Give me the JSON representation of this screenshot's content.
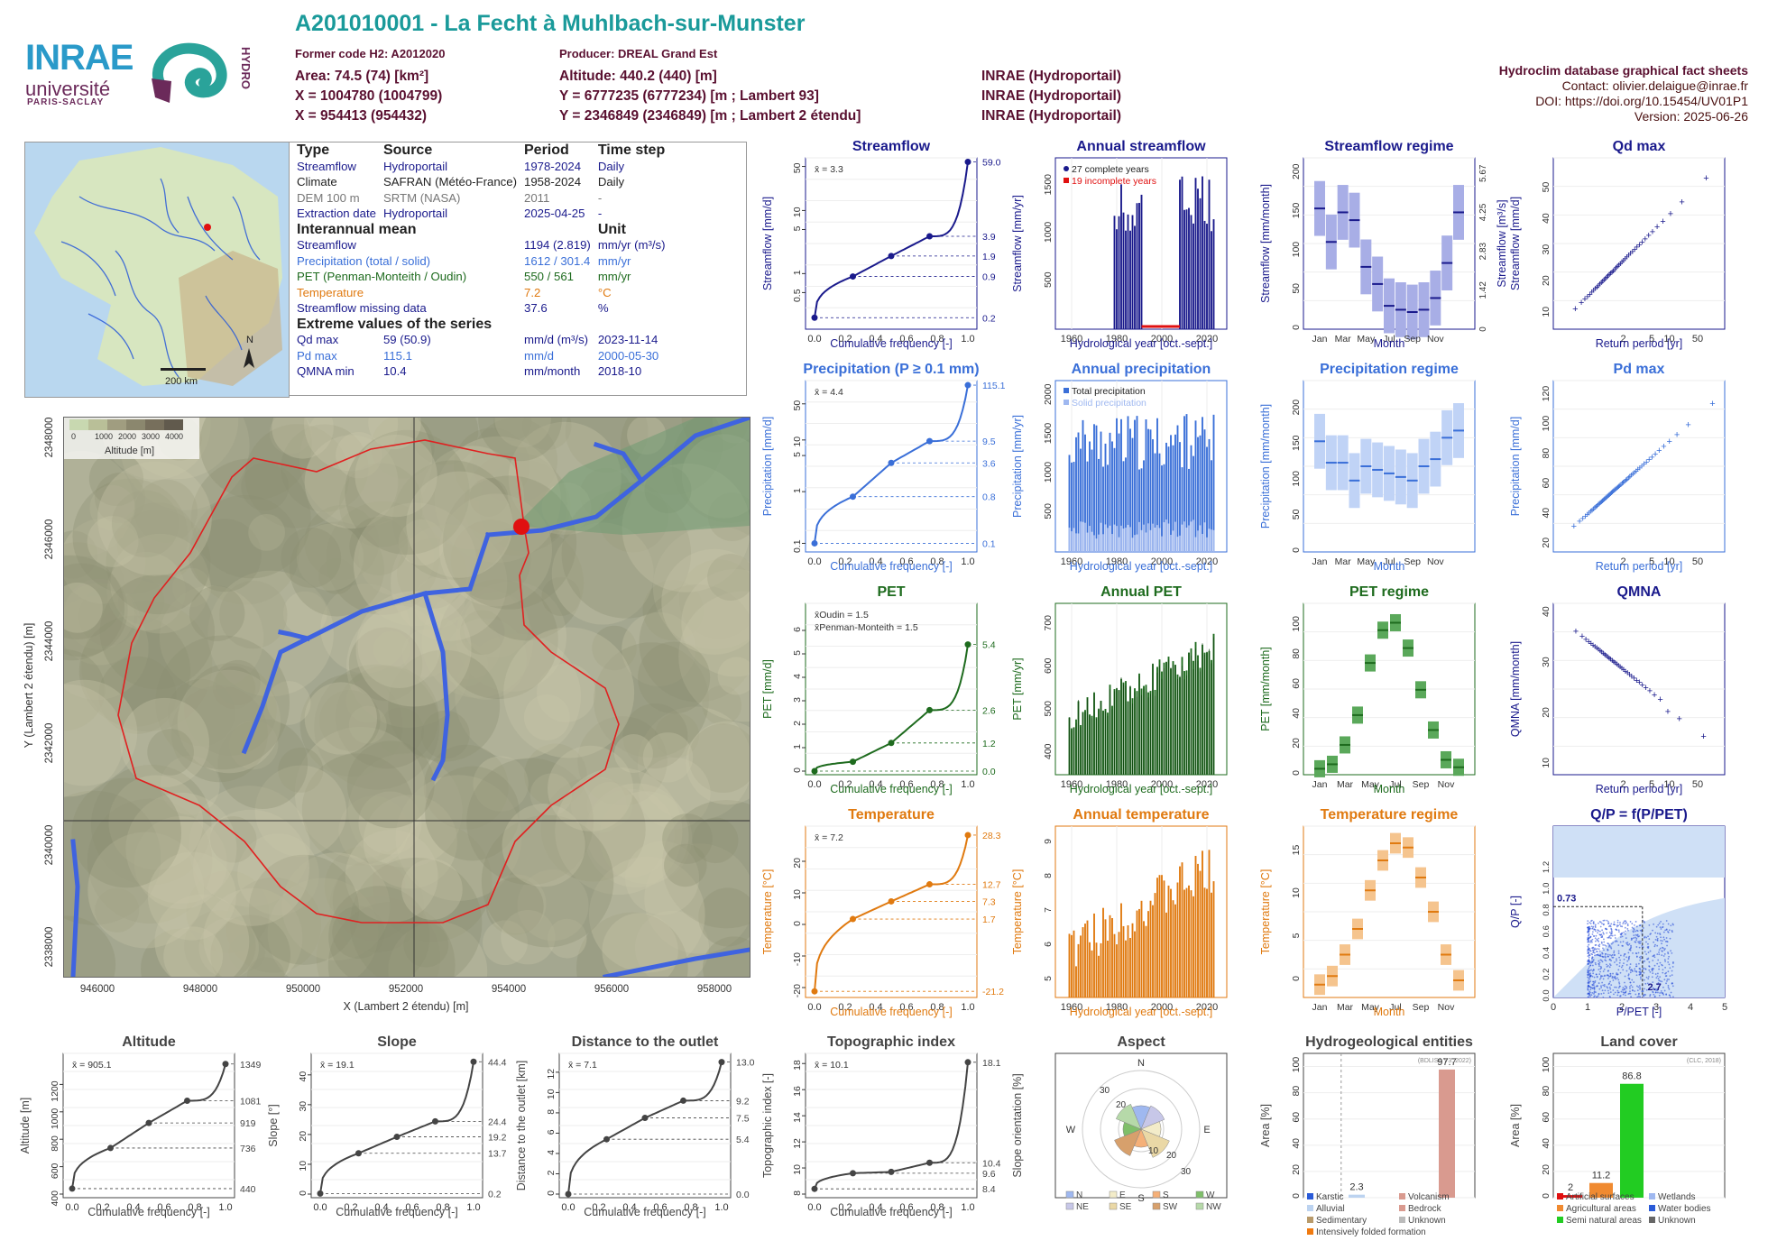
{
  "header": {
    "title": "A201010001 - La Fecht à Muhlbach-sur-Munster",
    "former_code": "Former code H2: A2012020",
    "producer": "Producer: DREAL Grand Est",
    "area": "Area: 74.5 (74) [km²]",
    "altitude": "Altitude: 440.2 (440) [m]",
    "x93": "X = 1004780 (1004799)",
    "y93": "Y = 6777235 (6777234) [m ; Lambert 93]",
    "x2": "X = 954413 (954432)",
    "y2": "Y = 2346849 (2346849) [m ; Lambert 2 étendu]",
    "src1": "INRAE (Hydroportail)",
    "src2": "INRAE (Hydroportail)",
    "src3": "INRAE (Hydroportail)",
    "right_title": "Hydroclim database graphical fact sheets",
    "contact": "Contact: olivier.delaigue@inrae.fr",
    "doi": "DOI: https://doi.org/10.15454/UV01P1",
    "version": "Version: 2025-06-26"
  },
  "logos": {
    "inrae": "INRAE",
    "univ": "université",
    "ps": "PARIS-SACLAY",
    "hydro": "HYDRO"
  },
  "inset_map": {
    "scale": "200 km",
    "north": "N"
  },
  "info_table": {
    "h_type": "Type",
    "h_source": "Source",
    "h_period": "Period",
    "h_timestep": "Time step",
    "rows": [
      {
        "type": "Streamflow",
        "source": "Hydroportail",
        "period": "1978-2024",
        "step": "Daily",
        "color": "#1a1a8c"
      },
      {
        "type": "Climate",
        "source": "SAFRAN (Météo-France)",
        "period": "1958-2024",
        "step": "Daily",
        "color": "#222"
      },
      {
        "type": "DEM 100 m",
        "source": "SRTM (NASA)",
        "period": "2011",
        "step": "-",
        "color": "#777"
      },
      {
        "type": "Extraction date",
        "source": "Hydroportail",
        "period": "2025-04-25",
        "step": "-",
        "color": "#1a1a8c"
      }
    ],
    "h_inter": "Interannual mean",
    "h_unit": "Unit",
    "inter": [
      {
        "name": "Streamflow",
        "value": "1194 (2.819)",
        "unit": "mm/yr (m³/s)",
        "color": "#1a1a8c"
      },
      {
        "name": "Precipitation (total / solid)",
        "value": "1612 / 301.4",
        "unit": "mm/yr",
        "color": "#3a6fd8"
      },
      {
        "name": "PET (Penman-Monteith / Oudin)",
        "value": "550 / 561",
        "unit": "mm/yr",
        "color": "#1e6b1e"
      },
      {
        "name": "Temperature",
        "value": "7.2",
        "unit": "°C",
        "color": "#e07a10"
      },
      {
        "name": "Streamflow missing data",
        "value": "37.6",
        "unit": "%",
        "color": "#1a1a8c"
      }
    ],
    "h_extreme": "Extreme values of the series",
    "extreme": [
      {
        "name": "Qd max",
        "value": "59 (50.9)",
        "unit": "mm/d (m³/s)",
        "date": "2023-11-14",
        "color": "#1a1a8c"
      },
      {
        "name": "Pd max",
        "value": "115.1",
        "unit": "mm/d",
        "date": "2000-05-30",
        "color": "#3a6fd8"
      },
      {
        "name": "QMNA min",
        "value": "10.4",
        "unit": "mm/month",
        "date": "2018-10",
        "color": "#1a1a8c"
      }
    ]
  },
  "basin_map": {
    "legend_title": "Altitude [m]",
    "legend_ticks": [
      "0",
      "1000",
      "2000",
      "3000",
      "4000"
    ],
    "xlabel": "X (Lambert 2 étendu) [m]",
    "ylabel": "Y (Lambert 2 étendu) [m]",
    "xticks": [
      "946000",
      "948000",
      "950000",
      "952000",
      "954000",
      "956000",
      "958000"
    ],
    "yticks": [
      "2338000",
      "2340000",
      "2342000",
      "2344000",
      "2346000",
      "2348000"
    ]
  },
  "colors": {
    "flow": "#1a1a8c",
    "precip": "#3a6fd8",
    "pet": "#1e6b1e",
    "temp": "#e07a10",
    "teal": "#1a9a9a"
  },
  "chart_data": [
    {
      "id": "streamflow",
      "type": "line",
      "title": "Streamflow",
      "xlabel": "Cumulative frequency [-]",
      "ylabel": "Streamflow [mm/d]",
      "color": "#1a1a8c",
      "log": true,
      "mean_label": "x̄ = 3.3",
      "right_ticks": [
        "59.0",
        "3.9",
        "1.9",
        "0.9",
        "0.2"
      ],
      "right_vals": [
        59,
        3.9,
        1.9,
        0.9,
        0.2
      ],
      "ylim": [
        0.15,
        60
      ],
      "left_ticks": [
        {
          "v": 0.5,
          "t": "0.5"
        },
        {
          "v": 1,
          "t": "1"
        },
        {
          "v": 5,
          "t": "5"
        },
        {
          "v": 10,
          "t": "10"
        },
        {
          "v": 50,
          "t": "50"
        }
      ],
      "x": [
        0,
        0.25,
        0.5,
        0.75,
        1
      ],
      "y": [
        0.2,
        0.9,
        1.9,
        3.9,
        59
      ]
    },
    {
      "id": "precip",
      "type": "line",
      "title": "Precipitation (P ≥ 0.1 mm)",
      "xlabel": "Cumulative frequency [-]",
      "ylabel": "Precipitation [mm/d]",
      "color": "#3a6fd8",
      "log": true,
      "mean_label": "x̄ = 4.4",
      "right_ticks": [
        "115.1",
        "9.5",
        "3.6",
        "0.8",
        "0.1"
      ],
      "right_vals": [
        115.1,
        9.5,
        3.6,
        0.8,
        0.1
      ],
      "ylim": [
        0.08,
        120
      ],
      "left_ticks": [
        {
          "v": 0.1,
          "t": "0.1"
        },
        {
          "v": 1,
          "t": "1"
        },
        {
          "v": 5,
          "t": "5"
        },
        {
          "v": 10,
          "t": "10"
        },
        {
          "v": 50,
          "t": "50"
        }
      ],
      "x": [
        0,
        0.25,
        0.5,
        0.75,
        1
      ],
      "y": [
        0.1,
        0.8,
        3.6,
        9.5,
        115.1
      ]
    },
    {
      "id": "pet",
      "type": "line",
      "title": "PET",
      "xlabel": "Cumulative frequency [-]",
      "ylabel": "PET [mm/d]",
      "color": "#1e6b1e",
      "log": false,
      "mean_label": "x̄Oudin = 1.5",
      "mean_label2": "x̄Penman-Monteith = 1.5",
      "right_ticks": [
        "5.4",
        "2.6",
        "1.2",
        "0.0"
      ],
      "right_vals": [
        5.4,
        2.6,
        1.2,
        0.0
      ],
      "ylim": [
        0,
        7
      ],
      "left_ticks": [
        {
          "v": 0,
          "t": "0"
        },
        {
          "v": 1,
          "t": "1"
        },
        {
          "v": 2,
          "t": "2"
        },
        {
          "v": 3,
          "t": "3"
        },
        {
          "v": 4,
          "t": "4"
        },
        {
          "v": 5,
          "t": "5"
        },
        {
          "v": 6,
          "t": "6"
        }
      ],
      "x": [
        0,
        0.25,
        0.5,
        0.75,
        1
      ],
      "y": [
        0.0,
        0.4,
        1.2,
        2.6,
        5.4
      ]
    },
    {
      "id": "temp",
      "type": "line",
      "title": "Temperature",
      "xlabel": "Cumulative frequency [-]",
      "ylabel": "Temperature [°C]",
      "color": "#e07a10",
      "log": false,
      "mean_label": "x̄ = 7.2",
      "right_ticks": [
        "28.3",
        "12.7",
        "7.3",
        "1.7",
        "-21.2"
      ],
      "right_vals": [
        28.3,
        12.7,
        7.3,
        1.7,
        -21.2
      ],
      "ylim": [
        -22,
        30
      ],
      "left_ticks": [
        {
          "v": -20,
          "t": "-20"
        },
        {
          "v": -10,
          "t": "-10"
        },
        {
          "v": 0,
          "t": "0"
        },
        {
          "v": 10,
          "t": "10"
        },
        {
          "v": 20,
          "t": "20"
        }
      ],
      "x": [
        0,
        0.25,
        0.5,
        0.75,
        1
      ],
      "y": [
        -21.2,
        1.7,
        7.3,
        12.7,
        28.3
      ]
    },
    {
      "id": "annual_flow",
      "type": "bar",
      "title": "Annual streamflow",
      "xlabel": "Hydrological year [oct.-sept.]",
      "ylabel": "Streamflow [mm/yr]",
      "color": "#1a1a8c",
      "ylim": [
        0,
        1800
      ],
      "legend": [
        "27 complete years",
        "19 incomplete years"
      ]
    },
    {
      "id": "annual_precip",
      "type": "bar",
      "title": "Annual precipitation",
      "xlabel": "Hydrological year [oct.-sept.]",
      "ylabel": "Precipitation [mm/yr]",
      "color": "#3a6fd8",
      "ylim": [
        0,
        2200
      ],
      "legend": [
        "Total precipitation",
        "Solid precipitation"
      ]
    },
    {
      "id": "annual_pet",
      "type": "bar",
      "title": "Annual PET",
      "xlabel": "Hydrological year [oct.-sept.]",
      "ylabel": "PET [mm/yr]",
      "color": "#1e6b1e",
      "ylim": [
        350,
        750
      ]
    },
    {
      "id": "annual_temp",
      "type": "bar",
      "title": "Annual temperature",
      "xlabel": "Hydrological year [oct.-sept.]",
      "ylabel": "Temperature [°C]",
      "color": "#e07a10",
      "ylim": [
        4.5,
        9.5
      ]
    },
    {
      "id": "regime_flow",
      "type": "box",
      "title": "Streamflow regime",
      "xlabel": "Month",
      "ylabel": "Streamflow [mm/month]",
      "right_label": "Streamflow [m³/s]",
      "color": "#1a1a8c",
      "months": [
        "Jan",
        "Mar",
        "May",
        "Jul",
        "Sep",
        "Nov"
      ],
      "median": [
        155,
        112,
        150,
        140,
        80,
        58,
        30,
        25,
        22,
        25,
        40,
        85,
        150
      ],
      "ylim": [
        0,
        220
      ]
    },
    {
      "id": "regime_precip",
      "type": "box",
      "title": "Precipitation regime",
      "xlabel": "Month",
      "ylabel": "Precipitation [mm/month]",
      "color": "#3a6fd8",
      "months": [
        "Jan",
        "Mar",
        "May",
        "Jul",
        "Sep",
        "Nov"
      ],
      "median": [
        155,
        125,
        125,
        100,
        120,
        115,
        110,
        105,
        100,
        120,
        130,
        160,
        170
      ],
      "ylim": [
        0,
        240
      ]
    },
    {
      "id": "regime_pet",
      "type": "box",
      "title": "PET regime",
      "xlabel": "Month",
      "ylabel": "PET [mm/month]",
      "color": "#1e6b1e",
      "months": [
        "Jan",
        "Mar",
        "May",
        "Jul",
        "Sep",
        "Nov"
      ],
      "median": [
        4,
        7,
        20,
        40,
        75,
        97,
        102,
        85,
        57,
        30,
        10,
        5
      ],
      "ylim": [
        0,
        115
      ]
    },
    {
      "id": "regime_temp",
      "type": "box",
      "title": "Temperature regime",
      "xlabel": "Month",
      "ylabel": "Temperature [°C]",
      "color": "#e07a10",
      "months": [
        "Jan",
        "Mar",
        "May",
        "Jul",
        "Sep",
        "Nov"
      ],
      "median": [
        -0.5,
        0.5,
        3,
        6,
        10.5,
        14,
        16,
        15.5,
        12,
        8,
        3,
        0
      ],
      "ylim": [
        -2,
        18
      ]
    },
    {
      "id": "qdmax",
      "type": "scatter",
      "title": "Qd max",
      "xlabel": "Return period [yr]",
      "ylabel": "Streamflow [mm/d]",
      "color": "#1a1a8c",
      "ylim": [
        5,
        60
      ]
    },
    {
      "id": "pdmax",
      "type": "scatter",
      "title": "Pd max",
      "xlabel": "Return period [yr]",
      "ylabel": "Precipitation [mm/d]",
      "color": "#3a6fd8",
      "ylim": [
        15,
        130
      ]
    },
    {
      "id": "qmna",
      "type": "scatter",
      "title": "QMNA",
      "xlabel": "Return period [yr]",
      "ylabel": "QMNA [mm/month]",
      "color": "#1a1a8c",
      "ylim": [
        8,
        42
      ]
    },
    {
      "id": "qp",
      "type": "scatter",
      "title": "Q/P = f(P/PET)",
      "xlabel": "P/PET [-]",
      "ylabel": "Q/P [-]",
      "color": "#1a1a8c",
      "label_a": "0.73",
      "label_b": "2.7"
    },
    {
      "id": "alt",
      "type": "line",
      "title": "Altitude",
      "xlabel": "Cumulative frequency [-]",
      "ylabel": "Altitude [m]",
      "color": "#555",
      "mean_label": "x̄ = 905.1",
      "right_ticks": [
        "1349",
        "1081",
        "919",
        "736",
        "440"
      ],
      "right_vals": [
        1349,
        1081,
        919,
        736,
        440
      ],
      "ylim": [
        400,
        1400
      ],
      "left_ticks": [
        {
          "v": 400,
          "t": "400"
        },
        {
          "v": 600,
          "t": "600"
        },
        {
          "v": 800,
          "t": "800"
        },
        {
          "v": 1000,
          "t": "1000"
        },
        {
          "v": 1200,
          "t": "1200"
        }
      ],
      "x": [
        0,
        0.25,
        0.5,
        0.75,
        1
      ],
      "y": [
        440,
        736,
        919,
        1081,
        1349
      ]
    },
    {
      "id": "slope",
      "type": "line",
      "title": "Slope",
      "xlabel": "Cumulative frequency [-]",
      "ylabel": "Slope [°]",
      "color": "#555",
      "mean_label": "x̄ = 19.1",
      "right_ticks": [
        "44.4",
        "24.4",
        "19.2",
        "13.7",
        "0.2"
      ],
      "right_vals": [
        44.4,
        24.4,
        19.2,
        13.7,
        0.2
      ],
      "ylim": [
        0,
        46
      ],
      "left_ticks": [
        {
          "v": 0,
          "t": "0"
        },
        {
          "v": 10,
          "t": "10"
        },
        {
          "v": 20,
          "t": "20"
        },
        {
          "v": 30,
          "t": "30"
        },
        {
          "v": 40,
          "t": "40"
        }
      ],
      "x": [
        0,
        0.25,
        0.5,
        0.75,
        1
      ],
      "y": [
        0.2,
        13.7,
        19.2,
        24.4,
        44.4
      ]
    },
    {
      "id": "dist",
      "type": "line",
      "title": "Distance to the outlet",
      "xlabel": "Cumulative frequency [-]",
      "ylabel": "Distance to the outlet [km]",
      "color": "#555",
      "mean_label": "x̄ = 7.1",
      "right_ticks": [
        "13.0",
        "9.2",
        "7.5",
        "5.4",
        "0.0"
      ],
      "right_vals": [
        13.0,
        9.2,
        7.5,
        5.4,
        0.0
      ],
      "ylim": [
        0,
        13.5
      ],
      "left_ticks": [
        {
          "v": 0,
          "t": "0"
        },
        {
          "v": 2,
          "t": "2"
        },
        {
          "v": 4,
          "t": "4"
        },
        {
          "v": 6,
          "t": "6"
        },
        {
          "v": 8,
          "t": "8"
        },
        {
          "v": 10,
          "t": "10"
        },
        {
          "v": 12,
          "t": "12"
        }
      ],
      "x": [
        0,
        0.25,
        0.5,
        0.75,
        1
      ],
      "y": [
        0,
        5.4,
        7.5,
        9.2,
        13.0
      ]
    },
    {
      "id": "topo",
      "type": "line",
      "title": "Topographic index",
      "xlabel": "Cumulative frequency [-]",
      "ylabel": "Topographic index [-]",
      "color": "#555",
      "mean_label": "x̄ = 10.1",
      "right_ticks": [
        "18.1",
        "10.4",
        "9.6",
        "8.4"
      ],
      "right_vals": [
        18.1,
        10.4,
        9.6,
        8.4
      ],
      "ylim": [
        8,
        18.5
      ],
      "left_ticks": [
        {
          "v": 8,
          "t": "8"
        },
        {
          "v": 10,
          "t": "10"
        },
        {
          "v": 12,
          "t": "12"
        },
        {
          "v": 14,
          "t": "14"
        },
        {
          "v": 16,
          "t": "16"
        },
        {
          "v": 18,
          "t": "18"
        }
      ],
      "x": [
        0,
        0.25,
        0.5,
        0.75,
        1
      ],
      "y": [
        8.4,
        9.6,
        9.7,
        10.4,
        18.1
      ]
    },
    {
      "id": "aspect",
      "type": "pie",
      "title": "Aspect",
      "ylabel": "Slope orientation [%]",
      "legend": [
        "N",
        "E",
        "S",
        "W",
        "NE",
        "SE",
        "SW",
        "NW"
      ]
    },
    {
      "id": "hydrogeo",
      "type": "bar",
      "title": "Hydrogeological entities",
      "ylabel": "Area [%]",
      "note": "(BDLISA V3, 2022)",
      "values": [
        2.3,
        97.7
      ],
      "legend": [
        "Karstic",
        "Volcanism",
        "Alluvial",
        "Bedrock",
        "Sedimentary",
        "Unknown",
        "Intensively folded formation"
      ]
    },
    {
      "id": "landcover",
      "type": "bar",
      "title": "Land cover",
      "ylabel": "Area [%]",
      "note": "(CLC, 2018)",
      "values": [
        2,
        11.2,
        86.8
      ],
      "legend": [
        "Artificial surfaces",
        "Wetlands",
        "Agricultural areas",
        "Water bodies",
        "Semi natural areas",
        "Unknown"
      ]
    }
  ]
}
